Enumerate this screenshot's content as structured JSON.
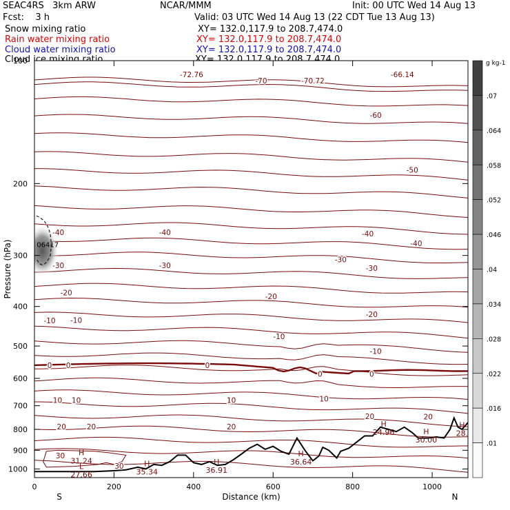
{
  "header": {
    "model": "SEAC4RS   3km ARW",
    "org": "NCAR/MMM",
    "init": "Init: 00 UTC Wed 14 Aug 13",
    "fcst": "Fcst:    3 h",
    "valid": "Valid: 03 UTC Wed 14 Aug 13 (22 CDT Tue 13 Aug 13)"
  },
  "fields": [
    {
      "name": "Snow mixing ratio",
      "xy": "XY= 132.0,117.9 to 208.7,474.0",
      "color": "#000000"
    },
    {
      "name": "Rain water mixing ratio",
      "xy": "XY= 132.0,117.9 to 208.7,474.0",
      "color": "#e00000"
    },
    {
      "name": "Cloud water mixing ratio",
      "xy": "XY= 132.0,117.9 to 208.7,474.0",
      "color": "#1010c0"
    },
    {
      "name": "Cloud ice mixing ratio",
      "xy": "XY= 132.0,117.9 to 208.7,474.0",
      "color": "#000000"
    }
  ],
  "chart_data": {
    "type": "contour",
    "xlabel": "Distance (km)",
    "ylabel": "Pressure (hPa)",
    "xlim": [
      0,
      1090
    ],
    "ylim": [
      1050,
      100
    ],
    "y_scale": "log",
    "xticks": [
      0,
      200,
      400,
      600,
      800,
      1000
    ],
    "yticks": [
      100,
      200,
      300,
      400,
      500,
      600,
      700,
      800,
      900,
      1000
    ],
    "x_end_labels": {
      "left": "S",
      "right": "N"
    },
    "contour_color": "#7a0a0a",
    "contour_levels": [
      -70,
      -60,
      -50,
      -40,
      -30,
      -20,
      -10,
      0,
      10,
      20,
      30
    ],
    "contour_labels": [
      {
        "text": "-72.76",
        "x": 395,
        "p": 108
      },
      {
        "text": "-70",
        "x": 570,
        "p": 112
      },
      {
        "text": "-70.72",
        "x": 700,
        "p": 112
      },
      {
        "text": "-66.14",
        "x": 925,
        "p": 108
      },
      {
        "text": "-60",
        "x": 858,
        "p": 136
      },
      {
        "text": "-50",
        "x": 950,
        "p": 185
      },
      {
        "text": "-40",
        "x": 60,
        "p": 263
      },
      {
        "text": "-40",
        "x": 328,
        "p": 263
      },
      {
        "text": "-40",
        "x": 838,
        "p": 265
      },
      {
        "text": "-40",
        "x": 960,
        "p": 280
      },
      {
        "text": "-30",
        "x": 60,
        "p": 317
      },
      {
        "text": "-30",
        "x": 328,
        "p": 317
      },
      {
        "text": "-30",
        "x": 770,
        "p": 307
      },
      {
        "text": "-30",
        "x": 848,
        "p": 322
      },
      {
        "text": "-20",
        "x": 80,
        "p": 370
      },
      {
        "text": "-20",
        "x": 595,
        "p": 378
      },
      {
        "text": "-20",
        "x": 848,
        "p": 418
      },
      {
        "text": "-10",
        "x": 38,
        "p": 433
      },
      {
        "text": "-10",
        "x": 105,
        "p": 432
      },
      {
        "text": "-10",
        "x": 615,
        "p": 473
      },
      {
        "text": "-10",
        "x": 858,
        "p": 515
      },
      {
        "text": "0",
        "x": 38,
        "p": 557
      },
      {
        "text": "0",
        "x": 85,
        "p": 557
      },
      {
        "text": "0",
        "x": 435,
        "p": 557
      },
      {
        "text": "0",
        "x": 718,
        "p": 585
      },
      {
        "text": "0",
        "x": 848,
        "p": 585
      },
      {
        "text": "10",
        "x": 58,
        "p": 678
      },
      {
        "text": "10",
        "x": 105,
        "p": 678
      },
      {
        "text": "10",
        "x": 495,
        "p": 678
      },
      {
        "text": "10",
        "x": 728,
        "p": 673
      },
      {
        "text": "20",
        "x": 68,
        "p": 787
      },
      {
        "text": "20",
        "x": 143,
        "p": 787
      },
      {
        "text": "20",
        "x": 495,
        "p": 787
      },
      {
        "text": "20",
        "x": 843,
        "p": 743
      },
      {
        "text": "20",
        "x": 990,
        "p": 745
      },
      {
        "text": "30",
        "x": 65,
        "p": 927
      },
      {
        "text": "30",
        "x": 213,
        "p": 982
      }
    ],
    "extrema": [
      {
        "type": "H",
        "value": "31.24",
        "x": 118,
        "p": 940
      },
      {
        "type": "L",
        "value": "27.66",
        "x": 118,
        "p": 1015
      },
      {
        "type": "H",
        "value": "35.34",
        "x": 283,
        "p": 1000
      },
      {
        "type": "H",
        "value": "36.91",
        "x": 458,
        "p": 990
      },
      {
        "type": "H",
        "value": "36.64",
        "x": 670,
        "p": 945
      },
      {
        "type": "H",
        "value": "24.96",
        "x": 878,
        "p": 800
      },
      {
        "type": "H",
        "value": "30.00",
        "x": 985,
        "p": 835
      },
      {
        "type": "H",
        "value": "28.",
        "x": 1075,
        "p": 805
      }
    ],
    "cloud_ice_label": {
      "text": "06417",
      "x": 30,
      "p": 282
    },
    "colorbar": {
      "unit": "g kg-1",
      "ticks": [
        ".07",
        ".064",
        ".058",
        ".052",
        ".046",
        ".04",
        ".034",
        ".028",
        ".022",
        ".016",
        ".01"
      ]
    }
  }
}
